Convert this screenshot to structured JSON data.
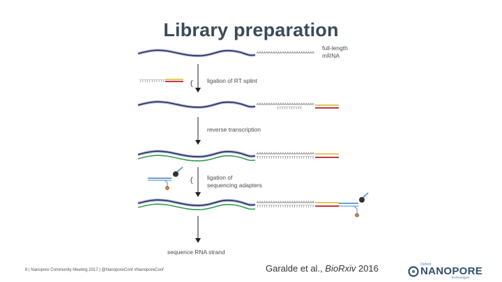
{
  "title": "Library preparation",
  "labels": {
    "full_length_mrna": [
      "full-length",
      "mRNA"
    ],
    "ligation_rt_splint": "ligation of RT splint",
    "reverse_transcription": "reverse transcription",
    "ligation_adapters": [
      "ligation of",
      "sequencing adapters"
    ],
    "sequence_rna": "sequence RNA strand"
  },
  "sequences": {
    "poly_a": "AAAAAAAAAAAAAAAAAAAAAAAAA",
    "poly_t_short": "TTTTTTTTTTT",
    "poly_t_long": "TTTTTTTTTTTTTTTTTTTTTTTTT"
  },
  "footer": {
    "page": "8",
    "event": "Nanopore Community Meeting 2017",
    "tags": "@NanoporeConf #NanoporeConf"
  },
  "citation": {
    "authors": "Garalde et al., ",
    "journal": "BioRxiv",
    "year": " 2016"
  },
  "logo": {
    "small": "Oxford",
    "main": "NANOPORE",
    "sub": "Technologies"
  },
  "colors": {
    "rna": "#2e2a55",
    "rna_glow": "#a9b8dc",
    "cdna": "#2f9a4a",
    "splint_yellow": "#d9cf5a",
    "splint_red": "#c8343c",
    "adapter_blue": "#6a9fcf",
    "motor": "#333333",
    "tether": "#e07a3a"
  }
}
